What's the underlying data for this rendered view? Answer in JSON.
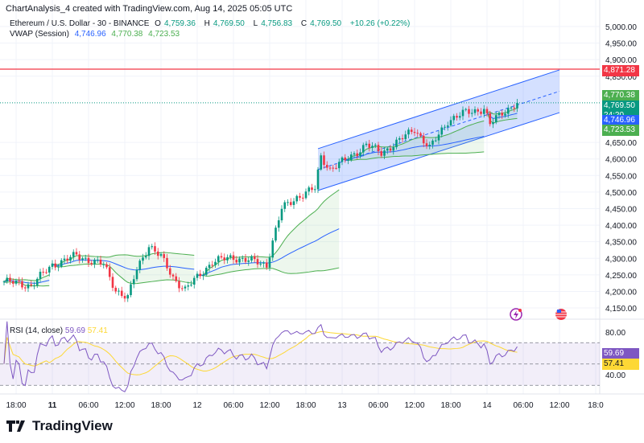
{
  "header": {
    "title": "ChartAnalysis_4 created with TradingView.com, Aug 14, 2025 05:05 UTC"
  },
  "legend": {
    "symbol": "Ethereum / U.S. Dollar - 30 - BINANCE",
    "open_label": "O",
    "open": "4,759.36",
    "high_label": "H",
    "high": "4,769.50",
    "low_label": "L",
    "low": "4,756.83",
    "close_label": "C",
    "close": "4,769.50",
    "change": "+10.26 (+0.22%)",
    "vwap_name": "VWAP (Session)",
    "vwap": "4,746.96",
    "vwap_upper": "4,770.38",
    "vwap_lower": "4,723.53"
  },
  "rsi_legend": {
    "name": "RSI (14, close)",
    "rsi": "59.69",
    "ma": "57.41"
  },
  "price_labels": {
    "resistance": "4,871.28",
    "vwap_upper": "4,770.38",
    "last": "4,769.50",
    "countdown": "24:20",
    "vwap": "4,746.96",
    "vwap_lower": "4,723.53",
    "rsi": "59.69",
    "rsi_ma": "57.41"
  },
  "colors": {
    "up": "#089981",
    "down": "#f23645",
    "vwap": "#2962ff",
    "band": "#4caf50",
    "resistance": "#f23645",
    "rsi": "#7e57c2",
    "rsi_ma": "#fdd835",
    "channel": "#2962ff"
  },
  "icons": [
    "lightning-event-icon",
    "us-flag-icon"
  ],
  "brand": "TradingView",
  "chart_data": {
    "type": "candlestick",
    "interval": "30m",
    "price_axis": {
      "ticks": [
        "5,000.00",
        "4,950.00",
        "4,900.00",
        "4,850.00",
        "4,650.00",
        "4,600.00",
        "4,550.00",
        "4,500.00",
        "4,450.00",
        "4,400.00",
        "4,350.00",
        "4,300.00",
        "4,250.00",
        "4,200.00",
        "4,150.00"
      ],
      "range": [
        4150,
        5000
      ]
    },
    "time_axis": [
      {
        "t": "2025-08-10T18:00Z",
        "label": "18:00"
      },
      {
        "t": "2025-08-11T00:00Z",
        "label": "11",
        "bold": true
      },
      {
        "t": "2025-08-11T06:00Z",
        "label": "06:00"
      },
      {
        "t": "2025-08-11T12:00Z",
        "label": "12:00"
      },
      {
        "t": "2025-08-11T18:00Z",
        "label": "18:00"
      },
      {
        "t": "2025-08-12T00:00Z",
        "label": "12"
      },
      {
        "t": "2025-08-12T06:00Z",
        "label": "06:00"
      },
      {
        "t": "2025-08-12T12:00Z",
        "label": "12:00"
      },
      {
        "t": "2025-08-12T18:00Z",
        "label": "18:00"
      },
      {
        "t": "2025-08-13T00:00Z",
        "label": "13"
      },
      {
        "t": "2025-08-13T06:00Z",
        "label": "06:00"
      },
      {
        "t": "2025-08-13T12:00Z",
        "label": "12:00"
      },
      {
        "t": "2025-08-13T18:00Z",
        "label": "18:00"
      },
      {
        "t": "2025-08-14T00:00Z",
        "label": "14"
      },
      {
        "t": "2025-08-14T06:00Z",
        "label": "06:00"
      },
      {
        "t": "2025-08-14T12:00Z",
        "label": "12:00"
      },
      {
        "t": "2025-08-14T18:00Z",
        "label": "18:0"
      }
    ],
    "price_path": [
      [
        "2025-08-10T16:00Z",
        4230
      ],
      [
        "2025-08-10T20:30Z",
        4218
      ],
      [
        "2025-08-11T00:00Z",
        4280
      ],
      [
        "2025-08-11T04:00Z",
        4308
      ],
      [
        "2025-08-11T08:30Z",
        4280
      ],
      [
        "2025-08-11T10:30Z",
        4205
      ],
      [
        "2025-08-11T12:30Z",
        4180
      ],
      [
        "2025-08-11T14:00Z",
        4267
      ],
      [
        "2025-08-11T16:00Z",
        4340
      ],
      [
        "2025-08-11T18:00Z",
        4303
      ],
      [
        "2025-08-11T20:00Z",
        4242
      ],
      [
        "2025-08-11T22:00Z",
        4205
      ],
      [
        "2025-08-12T00:00Z",
        4242
      ],
      [
        "2025-08-12T02:30Z",
        4290
      ],
      [
        "2025-08-12T06:00Z",
        4303
      ],
      [
        "2025-08-12T09:30Z",
        4290
      ],
      [
        "2025-08-12T11:30Z",
        4280
      ],
      [
        "2025-08-12T12:30Z",
        4352
      ],
      [
        "2025-08-12T14:00Z",
        4449
      ],
      [
        "2025-08-12T16:30Z",
        4485
      ],
      [
        "2025-08-12T19:30Z",
        4510
      ],
      [
        "2025-08-12T20:30Z",
        4607
      ],
      [
        "2025-08-12T22:00Z",
        4570
      ],
      [
        "2025-08-13T00:30Z",
        4595
      ],
      [
        "2025-08-13T04:00Z",
        4643
      ],
      [
        "2025-08-13T06:30Z",
        4619
      ],
      [
        "2025-08-13T09:30Z",
        4655
      ],
      [
        "2025-08-13T12:00Z",
        4692
      ],
      [
        "2025-08-13T14:30Z",
        4631
      ],
      [
        "2025-08-13T17:30Z",
        4716
      ],
      [
        "2025-08-13T20:30Z",
        4740
      ],
      [
        "2025-08-13T23:30Z",
        4752
      ],
      [
        "2025-08-14T00:30Z",
        4704
      ],
      [
        "2025-08-14T02:30Z",
        4740
      ],
      [
        "2025-08-14T05:00Z",
        4769.5
      ]
    ],
    "last_price": 4769.5,
    "resistance": 4871.28,
    "channel": {
      "upper": [
        [
          "2025-08-12T20:00Z",
          4631
        ],
        [
          "2025-08-14T12:00Z",
          4869
        ]
      ],
      "lower": [
        [
          "2025-08-12T20:00Z",
          4505
        ],
        [
          "2025-08-14T12:00Z",
          4740
        ]
      ]
    },
    "rsi": {
      "period": 14,
      "levels": [
        70,
        50,
        30
      ],
      "axis_ticks": [
        "80.00",
        "40.00"
      ],
      "range": [
        80,
        40
      ]
    }
  }
}
